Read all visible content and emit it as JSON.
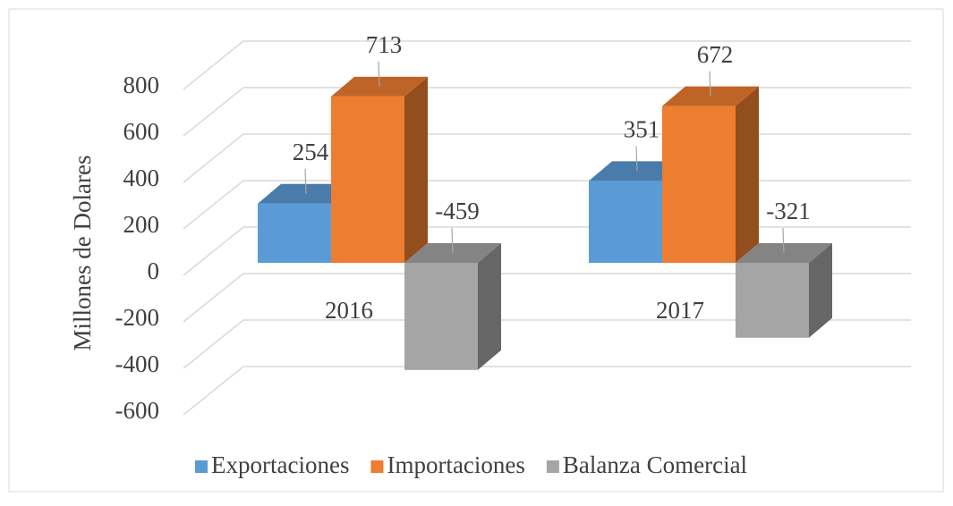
{
  "chart_data": {
    "type": "bar3d",
    "y_axis_label": "Millones de Dolares",
    "categories": [
      "2016",
      "2017"
    ],
    "series": [
      {
        "name": "Exportaciones",
        "color": "#5b9bd5",
        "values": [
          254,
          351
        ]
      },
      {
        "name": "Importaciones",
        "color": "#ed7d31",
        "values": [
          713,
          672
        ]
      },
      {
        "name": "Balanza Comercial",
        "color": "#a5a5a5",
        "values": [
          -459,
          -321
        ]
      }
    ],
    "ylim": [
      -600,
      800
    ],
    "yticks": [
      -600,
      -400,
      -200,
      0,
      200,
      400,
      600,
      800
    ],
    "grid": true,
    "legend": "bottom"
  }
}
